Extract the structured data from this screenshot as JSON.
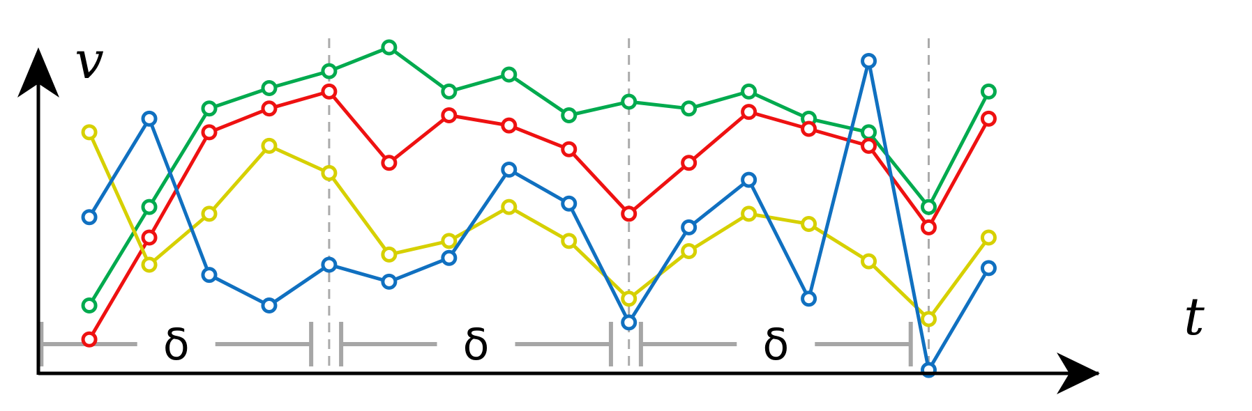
{
  "chart_data": {
    "type": "line",
    "title": "",
    "xlabel": "t",
    "ylabel": "v",
    "grid": false,
    "legend": "none",
    "x": [
      1,
      2,
      3,
      4,
      5,
      6,
      7,
      8,
      9,
      10,
      11,
      12,
      13,
      14,
      15,
      16
    ],
    "xlim": [
      0.15,
      17.6
    ],
    "ylim": [
      0,
      9.6
    ],
    "series": [
      {
        "color": "#00AA4E",
        "values": [
          2.0,
          4.9,
          7.8,
          8.4,
          8.9,
          9.6,
          8.3,
          8.8,
          7.6,
          8.0,
          7.8,
          8.3,
          7.5,
          7.1,
          4.9,
          8.3
        ]
      },
      {
        "color": "#EE1111",
        "values": [
          1.0,
          4.0,
          7.1,
          7.8,
          8.3,
          6.2,
          7.6,
          7.3,
          6.6,
          4.7,
          6.2,
          7.7,
          7.2,
          6.7,
          4.3,
          7.5
        ]
      },
      {
        "color": "#D6D000",
        "values": [
          7.1,
          3.2,
          4.7,
          6.7,
          5.9,
          3.5,
          3.9,
          4.9,
          3.9,
          2.2,
          3.6,
          4.7,
          4.4,
          3.3,
          1.6,
          4.0
        ]
      },
      {
        "color": "#1070C0",
        "values": [
          4.6,
          7.5,
          2.9,
          2.0,
          3.2,
          2.7,
          3.4,
          6.0,
          5.0,
          1.5,
          4.3,
          5.7,
          2.2,
          9.2,
          0.1,
          3.1
        ]
      }
    ],
    "vlines_at_x": [
      5,
      10,
      15
    ],
    "intervals": [
      {
        "label": "δ",
        "from": 0.2,
        "to": 4.7
      },
      {
        "label": "δ",
        "from": 5.2,
        "to": 9.7
      },
      {
        "label": "δ",
        "from": 10.2,
        "to": 14.7
      }
    ],
    "colors": {
      "axis": "#000000",
      "guide": "#AAAAAA",
      "interval": "#A6A6A6"
    }
  }
}
